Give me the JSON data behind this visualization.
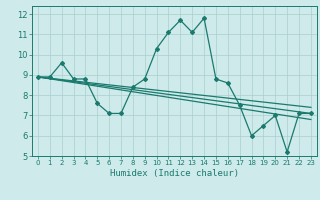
{
  "xlabel": "Humidex (Indice chaleur)",
  "ylabel": "",
  "background_color": "#ceeaea",
  "grid_color": "#aacece",
  "line_color": "#1a7a6e",
  "xlim": [
    -0.5,
    23.5
  ],
  "ylim": [
    5,
    12.4
  ],
  "xticks": [
    0,
    1,
    2,
    3,
    4,
    5,
    6,
    7,
    8,
    9,
    10,
    11,
    12,
    13,
    14,
    15,
    16,
    17,
    18,
    19,
    20,
    21,
    22,
    23
  ],
  "yticks": [
    5,
    6,
    7,
    8,
    9,
    10,
    11,
    12
  ],
  "series1_x": [
    0,
    1,
    2,
    3,
    4,
    5,
    6,
    7,
    8,
    9,
    10,
    11,
    12,
    13,
    14,
    15,
    16,
    17,
    18,
    19,
    20,
    21,
    22,
    23
  ],
  "series1_y": [
    8.9,
    8.9,
    9.6,
    8.8,
    8.8,
    7.6,
    7.1,
    7.1,
    8.4,
    8.8,
    10.3,
    11.1,
    11.7,
    11.1,
    11.8,
    8.8,
    8.6,
    7.5,
    6.0,
    6.5,
    7.0,
    5.2,
    7.1,
    7.1
  ],
  "trend1_x": [
    0,
    23
  ],
  "trend1_y": [
    8.9,
    7.1
  ],
  "trend2_x": [
    0,
    23
  ],
  "trend2_y": [
    8.9,
    6.8
  ],
  "trend3_x": [
    0,
    23
  ],
  "trend3_y": [
    8.9,
    7.4
  ]
}
